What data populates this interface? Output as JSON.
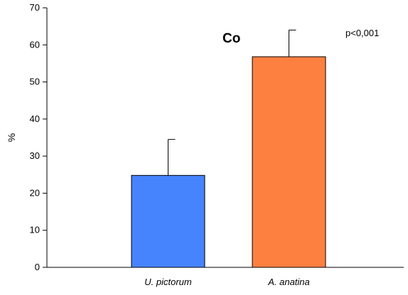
{
  "chart_data": {
    "type": "bar",
    "title": "Co",
    "annotation": "p<0,001",
    "xlabel": "",
    "ylabel": "%",
    "ylim": [
      0,
      70
    ],
    "yticks": [
      0,
      10,
      20,
      30,
      40,
      50,
      60,
      70
    ],
    "categories": [
      "U. pictorum",
      "A. anatina"
    ],
    "values": [
      24.8,
      56.8
    ],
    "error_upper": [
      34.5,
      64.0
    ],
    "colors": [
      "#4684fd",
      "#fe8041"
    ],
    "grid": false,
    "legend": "none"
  }
}
